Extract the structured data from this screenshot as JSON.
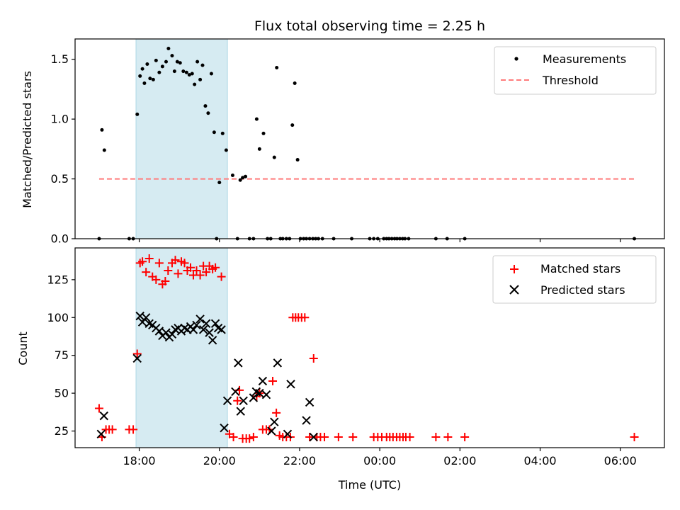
{
  "chart_data": [
    {
      "type": "scatter",
      "title": "Flux total observing time = 2.25 h",
      "xlabel": "",
      "ylabel": "Matched/Predicted stars",
      "xlim": [
        16.4,
        31.1
      ],
      "ylim": [
        0,
        1.67
      ],
      "yticks": [
        0.0,
        0.5,
        1.0,
        1.5
      ],
      "ytick_labels": [
        "0.0",
        "0.5",
        "1.0",
        "1.5"
      ],
      "shaded_span": [
        17.92,
        20.2
      ],
      "legend": {
        "location": "upper right",
        "entries": [
          "Measurements",
          "Threshold"
        ]
      },
      "threshold": {
        "name": "Threshold",
        "y": 0.5,
        "x_range": [
          17.0,
          30.35
        ]
      },
      "series": [
        {
          "name": "Measurements",
          "x": [
            17.0,
            17.07,
            17.13,
            17.75,
            17.85,
            17.95,
            18.02,
            18.08,
            18.13,
            18.2,
            18.27,
            18.35,
            18.42,
            18.5,
            18.58,
            18.67,
            18.73,
            18.82,
            18.88,
            18.95,
            19.02,
            19.1,
            19.18,
            19.25,
            19.32,
            19.38,
            19.45,
            19.52,
            19.58,
            19.65,
            19.72,
            19.8,
            19.87,
            19.93,
            20.0,
            20.08,
            20.17,
            20.33,
            20.45,
            20.52,
            20.58,
            20.65,
            20.75,
            20.85,
            20.93,
            21.0,
            21.1,
            21.2,
            21.28,
            21.37,
            21.43,
            21.52,
            21.58,
            21.67,
            21.75,
            21.82,
            21.88,
            21.95,
            22.02,
            22.1,
            22.17,
            22.25,
            22.33,
            22.4,
            22.47,
            22.57,
            22.85,
            23.3,
            23.75,
            23.85,
            23.95,
            24.1,
            24.17,
            24.23,
            24.3,
            24.37,
            24.43,
            24.5,
            24.57,
            24.63,
            24.72,
            25.4,
            25.68,
            26.12,
            30.35
          ],
          "y": [
            0.0,
            0.91,
            0.74,
            0.0,
            0.0,
            1.04,
            1.36,
            1.42,
            1.3,
            1.46,
            1.34,
            1.33,
            1.49,
            1.39,
            1.44,
            1.48,
            1.59,
            1.53,
            1.4,
            1.48,
            1.47,
            1.4,
            1.39,
            1.37,
            1.38,
            1.29,
            1.48,
            1.33,
            1.45,
            1.11,
            1.05,
            1.38,
            0.89,
            0.0,
            0.47,
            0.88,
            0.74,
            0.53,
            0.0,
            0.49,
            0.51,
            0.52,
            0.0,
            0.0,
            1.0,
            0.75,
            0.88,
            0.0,
            0.0,
            0.68,
            1.43,
            0.0,
            0.0,
            0.0,
            0.0,
            0.95,
            1.3,
            0.66,
            0.0,
            0.0,
            0.0,
            0.0,
            0.0,
            0.0,
            0.0,
            0.0,
            0.0,
            0.0,
            0.0,
            0.0,
            0.0,
            0.0,
            0.0,
            0.0,
            0.0,
            0.0,
            0.0,
            0.0,
            0.0,
            0.0,
            0.0,
            0.0,
            0.0,
            0.0,
            0.0
          ]
        }
      ]
    },
    {
      "type": "scatter",
      "title": "",
      "xlabel": "Time (UTC)",
      "ylabel": "Count",
      "xlim": [
        16.4,
        31.1
      ],
      "ylim": [
        14,
        146
      ],
      "yticks": [
        25,
        50,
        75,
        100,
        125
      ],
      "ytick_labels": [
        "25",
        "50",
        "75",
        "100",
        "125"
      ],
      "xticks": [
        18,
        20,
        22,
        24,
        26,
        28,
        30
      ],
      "xtick_labels": [
        "18:00",
        "20:00",
        "22:00",
        "00:00",
        "02:00",
        "04:00",
        "06:00"
      ],
      "shaded_span": [
        17.92,
        20.2
      ],
      "legend": {
        "location": "upper right",
        "entries": [
          "Matched stars",
          "Predicted stars"
        ]
      },
      "series": [
        {
          "name": "Matched stars",
          "x": [
            17.0,
            17.07,
            17.17,
            17.25,
            17.33,
            17.75,
            17.85,
            17.95,
            18.02,
            18.08,
            18.17,
            18.25,
            18.33,
            18.42,
            18.5,
            18.58,
            18.65,
            18.72,
            18.82,
            18.9,
            18.97,
            19.05,
            19.13,
            19.2,
            19.28,
            19.35,
            19.43,
            19.52,
            19.6,
            19.67,
            19.75,
            19.83,
            19.9,
            20.05,
            20.25,
            20.35,
            20.45,
            20.5,
            20.58,
            20.67,
            20.75,
            20.85,
            20.93,
            21.0,
            21.08,
            21.17,
            21.25,
            21.33,
            21.42,
            21.5,
            21.58,
            21.67,
            21.77,
            21.83,
            21.9,
            21.97,
            22.05,
            22.13,
            22.25,
            22.35,
            22.43,
            22.52,
            22.62,
            22.97,
            23.33,
            23.85,
            23.95,
            24.05,
            24.17,
            24.25,
            24.33,
            24.42,
            24.5,
            24.58,
            24.65,
            24.75,
            25.4,
            25.7,
            26.12,
            30.35
          ],
          "y": [
            40,
            21,
            26,
            26,
            26,
            26,
            26,
            76,
            136,
            137,
            130,
            139,
            127,
            125,
            136,
            122,
            124,
            131,
            136,
            138,
            129,
            137,
            136,
            131,
            133,
            128,
            131,
            128,
            134,
            130,
            134,
            132,
            133,
            127,
            23,
            21,
            45,
            52,
            20,
            20,
            20,
            21,
            48,
            50,
            26,
            26,
            26,
            58,
            37,
            22,
            21,
            21,
            21,
            100,
            100,
            100,
            100,
            100,
            21,
            73,
            21,
            21,
            21,
            21,
            21,
            21,
            21,
            21,
            21,
            21,
            21,
            21,
            21,
            21,
            21,
            21,
            21,
            21,
            21,
            21
          ]
        },
        {
          "name": "Predicted stars",
          "x": [
            17.05,
            17.12,
            17.95,
            18.02,
            18.08,
            18.17,
            18.25,
            18.33,
            18.42,
            18.5,
            18.58,
            18.67,
            18.75,
            18.82,
            18.9,
            18.97,
            19.05,
            19.13,
            19.2,
            19.28,
            19.35,
            19.43,
            19.52,
            19.6,
            19.67,
            19.75,
            19.83,
            19.9,
            19.97,
            20.05,
            20.12,
            20.2,
            20.4,
            20.47,
            20.53,
            20.6,
            20.85,
            20.92,
            21.0,
            21.08,
            21.17,
            21.3,
            21.37,
            21.45,
            21.7,
            21.78,
            22.17,
            22.25,
            22.35
          ],
          "y": [
            23,
            35,
            73,
            101,
            97,
            100,
            96,
            95,
            93,
            91,
            88,
            90,
            87,
            89,
            92,
            93,
            91,
            93,
            92,
            94,
            92,
            95,
            99,
            92,
            96,
            90,
            85,
            96,
            93,
            92,
            27,
            45,
            51,
            70,
            38,
            45,
            47,
            51,
            50,
            58,
            49,
            25,
            31,
            70,
            23,
            56,
            32,
            44,
            21
          ]
        }
      ]
    }
  ]
}
